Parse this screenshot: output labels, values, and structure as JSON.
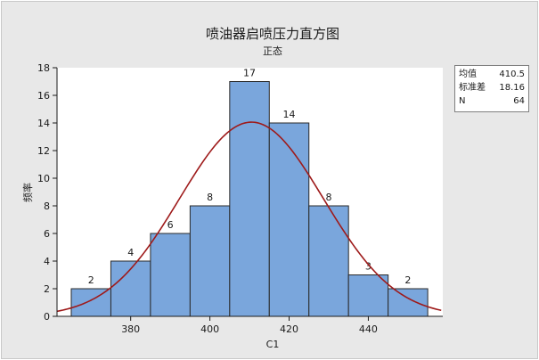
{
  "chart_data": {
    "type": "bar",
    "title": "喷油器启喷压力直方图",
    "subtitle": "正态",
    "xlabel": "C1",
    "ylabel": "频率",
    "bin_edges": [
      365,
      375,
      385,
      395,
      405,
      415,
      425,
      435,
      445,
      455
    ],
    "values": [
      2,
      4,
      6,
      8,
      17,
      14,
      8,
      3,
      2
    ],
    "data_labels": [
      "2",
      "4",
      "6",
      "8",
      "17",
      "14",
      "8",
      "3",
      "2"
    ],
    "xlim": [
      361.4,
      458.8
    ],
    "ylim": [
      0,
      18
    ],
    "x_ticks": [
      380,
      400,
      420,
      440
    ],
    "x_tick_labels": [
      "380",
      "400",
      "420",
      "440"
    ],
    "y_ticks": [
      0,
      2,
      4,
      6,
      8,
      10,
      12,
      14,
      16,
      18
    ],
    "y_tick_labels": [
      "0",
      "2",
      "4",
      "6",
      "8",
      "10",
      "12",
      "14",
      "16",
      "18"
    ],
    "fit": {
      "distribution": "normal",
      "mean": 410.5,
      "stdev": 18.16,
      "n": 64,
      "bin_width": 10
    },
    "legend": {
      "placement": "right",
      "rows": [
        {
          "label": "均值",
          "value": "410.5"
        },
        {
          "label": "标准差",
          "value": "18.16"
        },
        {
          "label": "N",
          "value": "64"
        }
      ]
    },
    "grid": false,
    "colors": {
      "bar_fill": "#7aa6dc",
      "bar_edge": "#2a2a2a",
      "curve": "#9e1a1a",
      "background": "#e8e8e8",
      "plot_area": "#ffffff"
    }
  }
}
